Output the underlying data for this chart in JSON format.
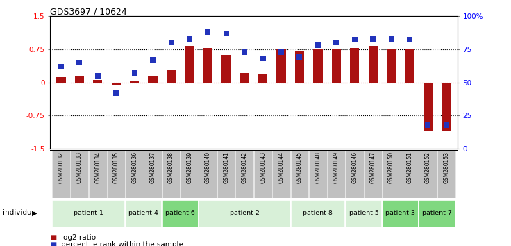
{
  "title": "GDS3697 / 10624",
  "samples": [
    "GSM280132",
    "GSM280133",
    "GSM280134",
    "GSM280135",
    "GSM280136",
    "GSM280137",
    "GSM280138",
    "GSM280139",
    "GSM280140",
    "GSM280141",
    "GSM280142",
    "GSM280143",
    "GSM280144",
    "GSM280145",
    "GSM280148",
    "GSM280149",
    "GSM280146",
    "GSM280147",
    "GSM280150",
    "GSM280151",
    "GSM280152",
    "GSM280153"
  ],
  "log2_ratio": [
    0.12,
    0.15,
    0.05,
    -0.07,
    0.04,
    0.15,
    0.28,
    0.82,
    0.78,
    0.62,
    0.22,
    0.18,
    0.76,
    0.7,
    0.74,
    0.77,
    0.78,
    0.82,
    0.76,
    0.77,
    -1.1,
    -1.1
  ],
  "percentile": [
    62,
    65,
    55,
    42,
    57,
    67,
    80,
    83,
    88,
    87,
    73,
    68,
    73,
    69,
    78,
    80,
    82,
    83,
    83,
    82,
    18,
    18
  ],
  "bar_color": "#aa1111",
  "dot_color": "#2233bb",
  "ylim_left": [
    -1.5,
    1.5
  ],
  "yticks_left": [
    -1.5,
    -0.75,
    0.0,
    0.75,
    1.5
  ],
  "yticklabels_left": [
    "-1.5",
    "-0.75",
    "0",
    "0.75",
    "1.5"
  ],
  "yticks_right_pct": [
    0,
    25,
    50,
    75,
    100
  ],
  "yticklabels_right": [
    "0",
    "25",
    "50",
    "75",
    "100%"
  ],
  "hlines_dotted": [
    0.75,
    -0.75
  ],
  "hline_zero_color": "#cc0000",
  "bar_width": 0.5,
  "dot_size": 28,
  "patient_groups": [
    {
      "label": "patient 1",
      "start": 0,
      "end": 3,
      "color": "#d8f0d8"
    },
    {
      "label": "patient 4",
      "start": 4,
      "end": 5,
      "color": "#d8f0d8"
    },
    {
      "label": "patient 6",
      "start": 6,
      "end": 7,
      "color": "#80d880"
    },
    {
      "label": "patient 2",
      "start": 8,
      "end": 12,
      "color": "#d8f0d8"
    },
    {
      "label": "patient 8",
      "start": 13,
      "end": 15,
      "color": "#d8f0d8"
    },
    {
      "label": "patient 5",
      "start": 16,
      "end": 17,
      "color": "#d8f0d8"
    },
    {
      "label": "patient 3",
      "start": 18,
      "end": 19,
      "color": "#80d880"
    },
    {
      "label": "patient 7",
      "start": 20,
      "end": 21,
      "color": "#80d880"
    }
  ],
  "sample_bg_color": "#c0c0c0",
  "sample_border_color": "#e8e8e8"
}
